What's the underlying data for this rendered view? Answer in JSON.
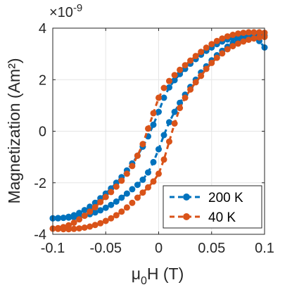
{
  "chart_data": {
    "type": "line",
    "xlabel": "μ0H (T)",
    "xlabel_base": "μ",
    "xlabel_sub": "0",
    "xlabel_rest": "H (T)",
    "ylabel": "Magnetization (Am²)",
    "exponent_label": "×10",
    "exponent_power": "-9",
    "xlim": [
      -0.1,
      0.1
    ],
    "ylim": [
      -4,
      4
    ],
    "x_ticks": [
      -0.1,
      -0.05,
      0,
      0.05,
      0.1
    ],
    "x_tick_labels": [
      "-0.1",
      "-0.05",
      "0",
      "0.05",
      "0.1"
    ],
    "y_ticks": [
      -4,
      -2,
      0,
      2,
      4
    ],
    "y_tick_labels": [
      "-4",
      "-2",
      "0",
      "2",
      "4"
    ],
    "grid": true,
    "legend_position": "bottom-right",
    "series": [
      {
        "name": "200 K",
        "color": "#0072BD",
        "descending": {
          "x": [
            0.1,
            0.095,
            0.09,
            0.085,
            0.08,
            0.075,
            0.07,
            0.065,
            0.06,
            0.055,
            0.05,
            0.045,
            0.04,
            0.035,
            0.03,
            0.025,
            0.02,
            0.015,
            0.01,
            0.005,
            0.0,
            -0.005,
            -0.01,
            -0.015,
            -0.02,
            -0.025,
            -0.03,
            -0.035,
            -0.04,
            -0.045,
            -0.05,
            -0.055,
            -0.06,
            -0.065,
            -0.07,
            -0.075,
            -0.08,
            -0.085,
            -0.09,
            -0.095,
            -0.1
          ],
          "y": [
            3.25,
            3.5,
            3.62,
            3.66,
            3.68,
            3.66,
            3.62,
            3.56,
            3.48,
            3.38,
            3.25,
            3.12,
            2.97,
            2.8,
            2.62,
            2.42,
            2.22,
            1.98,
            1.7,
            1.3,
            0.75,
            0.25,
            -0.2,
            -0.6,
            -0.95,
            -1.25,
            -1.52,
            -1.78,
            -2.0,
            -2.22,
            -2.42,
            -2.6,
            -2.78,
            -2.93,
            -3.06,
            -3.17,
            -3.26,
            -3.32,
            -3.36,
            -3.38,
            -3.38
          ]
        },
        "ascending": {
          "x": [
            -0.1,
            -0.095,
            -0.09,
            -0.085,
            -0.08,
            -0.075,
            -0.07,
            -0.065,
            -0.06,
            -0.055,
            -0.05,
            -0.045,
            -0.04,
            -0.035,
            -0.03,
            -0.025,
            -0.02,
            -0.015,
            -0.01,
            -0.005,
            0.0,
            0.005,
            0.01,
            0.015,
            0.02,
            0.025,
            0.03,
            0.035,
            0.04,
            0.045,
            0.05,
            0.055,
            0.06,
            0.065,
            0.07,
            0.075,
            0.08,
            0.085,
            0.09,
            0.095,
            0.1
          ],
          "y": [
            -3.38,
            -3.37,
            -3.36,
            -3.35,
            -3.34,
            -3.32,
            -3.28,
            -3.22,
            -3.15,
            -3.07,
            -2.97,
            -2.86,
            -2.73,
            -2.58,
            -2.42,
            -2.25,
            -2.08,
            -1.88,
            -1.6,
            -1.2,
            -0.7,
            -0.15,
            0.35,
            0.75,
            1.1,
            1.42,
            1.72,
            2.0,
            2.28,
            2.52,
            2.75,
            2.95,
            3.12,
            3.28,
            3.42,
            3.54,
            3.62,
            3.68,
            3.71,
            3.72,
            3.72
          ]
        }
      },
      {
        "name": "40 K",
        "color": "#D95319",
        "descending": {
          "x": [
            0.1,
            0.095,
            0.09,
            0.085,
            0.08,
            0.075,
            0.07,
            0.065,
            0.06,
            0.055,
            0.05,
            0.045,
            0.04,
            0.035,
            0.03,
            0.025,
            0.02,
            0.015,
            0.01,
            0.005,
            0.0,
            -0.005,
            -0.01,
            -0.015,
            -0.02,
            -0.025,
            -0.03,
            -0.035,
            -0.04,
            -0.045,
            -0.05,
            -0.055,
            -0.06,
            -0.065,
            -0.07,
            -0.075,
            -0.08,
            -0.085,
            -0.09,
            -0.095,
            -0.1
          ],
          "y": [
            3.82,
            3.84,
            3.84,
            3.84,
            3.82,
            3.79,
            3.74,
            3.68,
            3.6,
            3.5,
            3.38,
            3.24,
            3.08,
            2.92,
            2.74,
            2.56,
            2.38,
            2.18,
            1.95,
            1.68,
            1.3,
            0.7,
            0.1,
            -0.5,
            -0.95,
            -1.35,
            -1.65,
            -1.92,
            -2.15,
            -2.36,
            -2.55,
            -2.75,
            -2.95,
            -3.12,
            -3.28,
            -3.42,
            -3.55,
            -3.65,
            -3.72,
            -3.76,
            -3.78
          ]
        },
        "ascending": {
          "x": [
            -0.1,
            -0.095,
            -0.09,
            -0.085,
            -0.08,
            -0.075,
            -0.07,
            -0.065,
            -0.06,
            -0.055,
            -0.05,
            -0.045,
            -0.04,
            -0.035,
            -0.03,
            -0.025,
            -0.02,
            -0.015,
            -0.01,
            -0.005,
            0.0,
            0.005,
            0.01,
            0.015,
            0.02,
            0.025,
            0.03,
            0.035,
            0.04,
            0.045,
            0.05,
            0.055,
            0.06,
            0.065,
            0.07,
            0.075,
            0.08,
            0.085,
            0.09,
            0.095,
            0.1
          ],
          "y": [
            -3.78,
            -3.79,
            -3.8,
            -3.8,
            -3.79,
            -3.77,
            -3.74,
            -3.7,
            -3.64,
            -3.57,
            -3.48,
            -3.38,
            -3.26,
            -3.12,
            -2.96,
            -2.78,
            -2.58,
            -2.38,
            -2.18,
            -1.95,
            -1.65,
            -1.1,
            -0.4,
            0.3,
            0.9,
            1.3,
            1.62,
            1.9,
            2.15,
            2.42,
            2.65,
            2.85,
            3.02,
            3.18,
            3.3,
            3.4,
            3.48,
            3.55,
            3.6,
            3.64,
            3.66
          ]
        }
      }
    ]
  }
}
